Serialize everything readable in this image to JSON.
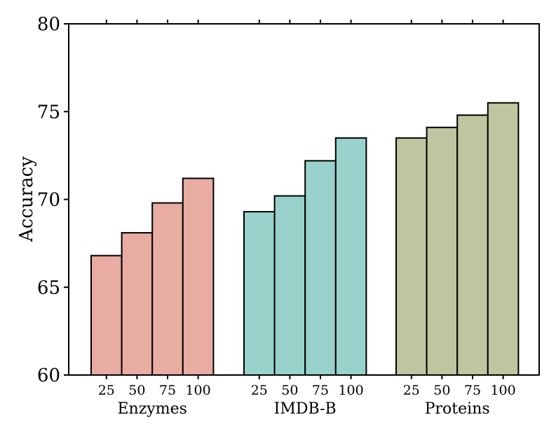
{
  "chart_data": {
    "type": "bar",
    "xlabel": "",
    "ylabel": "Accuracy",
    "ylim": [
      60,
      80
    ],
    "yticks": [
      60,
      65,
      70,
      75,
      80
    ],
    "grid": false,
    "groups": [
      {
        "name": "Enzymes",
        "color": "#e8aca2",
        "categories": [
          "25",
          "50",
          "75",
          "100"
        ],
        "values": [
          66.8,
          68.1,
          69.8,
          71.2
        ]
      },
      {
        "name": "IMDB-B",
        "color": "#98d2ca",
        "categories": [
          "25",
          "50",
          "75",
          "100"
        ],
        "values": [
          69.3,
          70.2,
          72.2,
          73.5
        ]
      },
      {
        "name": "Proteins",
        "color": "#bec69f",
        "categories": [
          "25",
          "50",
          "75",
          "100"
        ],
        "values": [
          73.5,
          74.1,
          74.8,
          75.5
        ]
      }
    ]
  }
}
